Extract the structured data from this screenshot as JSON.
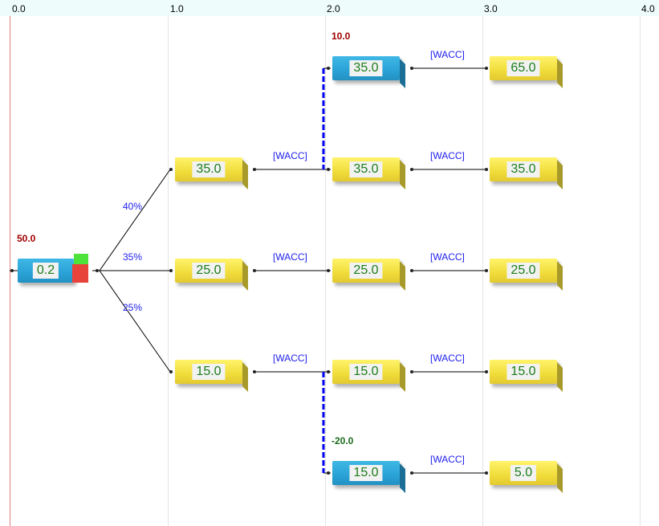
{
  "axis": {
    "ticks": [
      "0.0",
      "1.0",
      "2.0",
      "3.0",
      "4.0"
    ]
  },
  "colors": {
    "decision": "#2aa2d6",
    "chance": "#f0dc3a",
    "value_text": "#1a7d1a",
    "link": "#2020ee"
  },
  "root": {
    "value": "0.2",
    "payoff": "50.0",
    "icon": "decision-node-with-status-squares"
  },
  "branches": {
    "probs": [
      "40%",
      "35%",
      "25%"
    ],
    "rate": "[WACC]"
  },
  "col1": [
    "35.0",
    "25.0",
    "15.0"
  ],
  "col2": [
    {
      "value": "35.0",
      "payoff": "10.0"
    },
    {
      "value": "35.0"
    },
    {
      "value": "25.0"
    },
    {
      "value": "15.0"
    },
    {
      "value": "15.0",
      "payoff": "-20.0"
    }
  ],
  "col3": [
    "65.0",
    "35.0",
    "25.0",
    "15.0",
    "5.0"
  ]
}
